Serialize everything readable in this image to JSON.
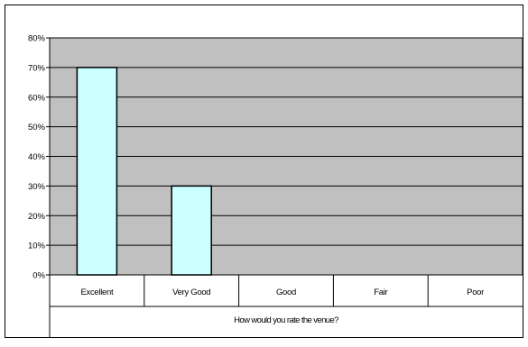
{
  "chart_data": {
    "type": "bar",
    "categories": [
      "Excellent",
      "Very Good",
      "Good",
      "Fair",
      "Poor"
    ],
    "values": [
      0.7,
      0.3,
      0,
      0,
      0
    ],
    "xlabel": "How would you rate the venue?",
    "ylabel": "",
    "ylim": [
      0,
      0.8
    ],
    "yticks": [
      "0%",
      "10%",
      "20%",
      "30%",
      "40%",
      "50%",
      "60%",
      "70%",
      "80%"
    ],
    "grid": true,
    "legend": "none",
    "colors": {
      "plot_background": "#c0c0c0",
      "bar_fill": "#ccffff",
      "bar_stroke": "#000000",
      "grid": "#000000",
      "outer_border": "#000000"
    }
  }
}
